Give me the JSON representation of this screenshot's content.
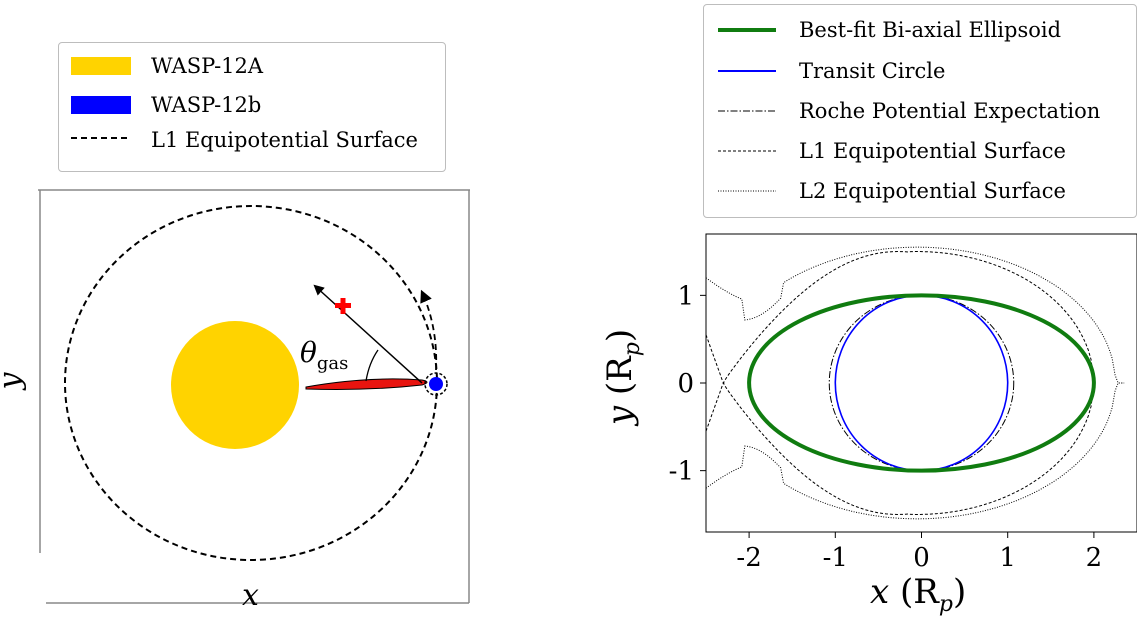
{
  "left": {
    "legend": [
      {
        "label": "WASP-12A",
        "swatch": "#ffd300"
      },
      {
        "label": "WASP-12b",
        "swatch": "#0000ff"
      },
      {
        "label": "L1 Equipotential Surface",
        "swatch": "dashed"
      }
    ],
    "xlabel": "x",
    "ylabel": "y",
    "theta_base": "θ",
    "theta_sub": "gas",
    "colors": {
      "star": "#ffd300",
      "planet": "#0000ff",
      "gas": "#e8140f",
      "marker": "#ff0000"
    }
  },
  "right": {
    "legend": [
      {
        "label": "Best-fit Bi-axial Ellipsoid",
        "style": "thick-green"
      },
      {
        "label": "Transit Circle",
        "style": "blue"
      },
      {
        "label": "Roche Potential Expectation",
        "style": "dashdot"
      },
      {
        "label": "L1 Equipotential Surface",
        "style": "dashed"
      },
      {
        "label": "L2 Equipotential Surface",
        "style": "dotted"
      }
    ],
    "xlabel_var": "x",
    "xlabel_unit": "(R",
    "xlabel_sub": "p",
    "xlabel_close": ")",
    "ylabel_var": "y",
    "ylabel_unit": "(R",
    "ylabel_sub": "p",
    "ylabel_close": ")",
    "x_ticks": [
      "-2",
      "-1",
      "0",
      "1",
      "2"
    ],
    "y_ticks": [
      "1",
      "0",
      "-1"
    ],
    "colors": {
      "ellipsoid": "#107c10",
      "transit": "#0000ff"
    },
    "chart_data": {
      "type": "line",
      "xlim": [
        -2.5,
        2.5
      ],
      "ylim": [
        -1.7,
        1.7
      ],
      "grid": false,
      "legend_position": "above",
      "series": [
        {
          "name": "Best-fit Bi-axial Ellipsoid",
          "shape": "ellipse",
          "center": [
            0,
            0
          ],
          "semi_x": 2.0,
          "semi_y": 1.0
        },
        {
          "name": "Transit Circle",
          "shape": "circle",
          "center": [
            0,
            0
          ],
          "radius": 1.0
        },
        {
          "name": "Roche Potential Expectation",
          "shape": "ellipse",
          "center": [
            0,
            0
          ],
          "semi_x": 1.07,
          "semi_y": 1.0
        },
        {
          "name": "L1 Equipotential Surface",
          "shape": "lobe",
          "x_tip": -2.3,
          "x_right": 2.0,
          "y_max": 1.5
        },
        {
          "name": "L2 Equipotential Surface",
          "shape": "lobe",
          "x_tip": 2.35,
          "y_max": 1.55
        }
      ]
    }
  }
}
